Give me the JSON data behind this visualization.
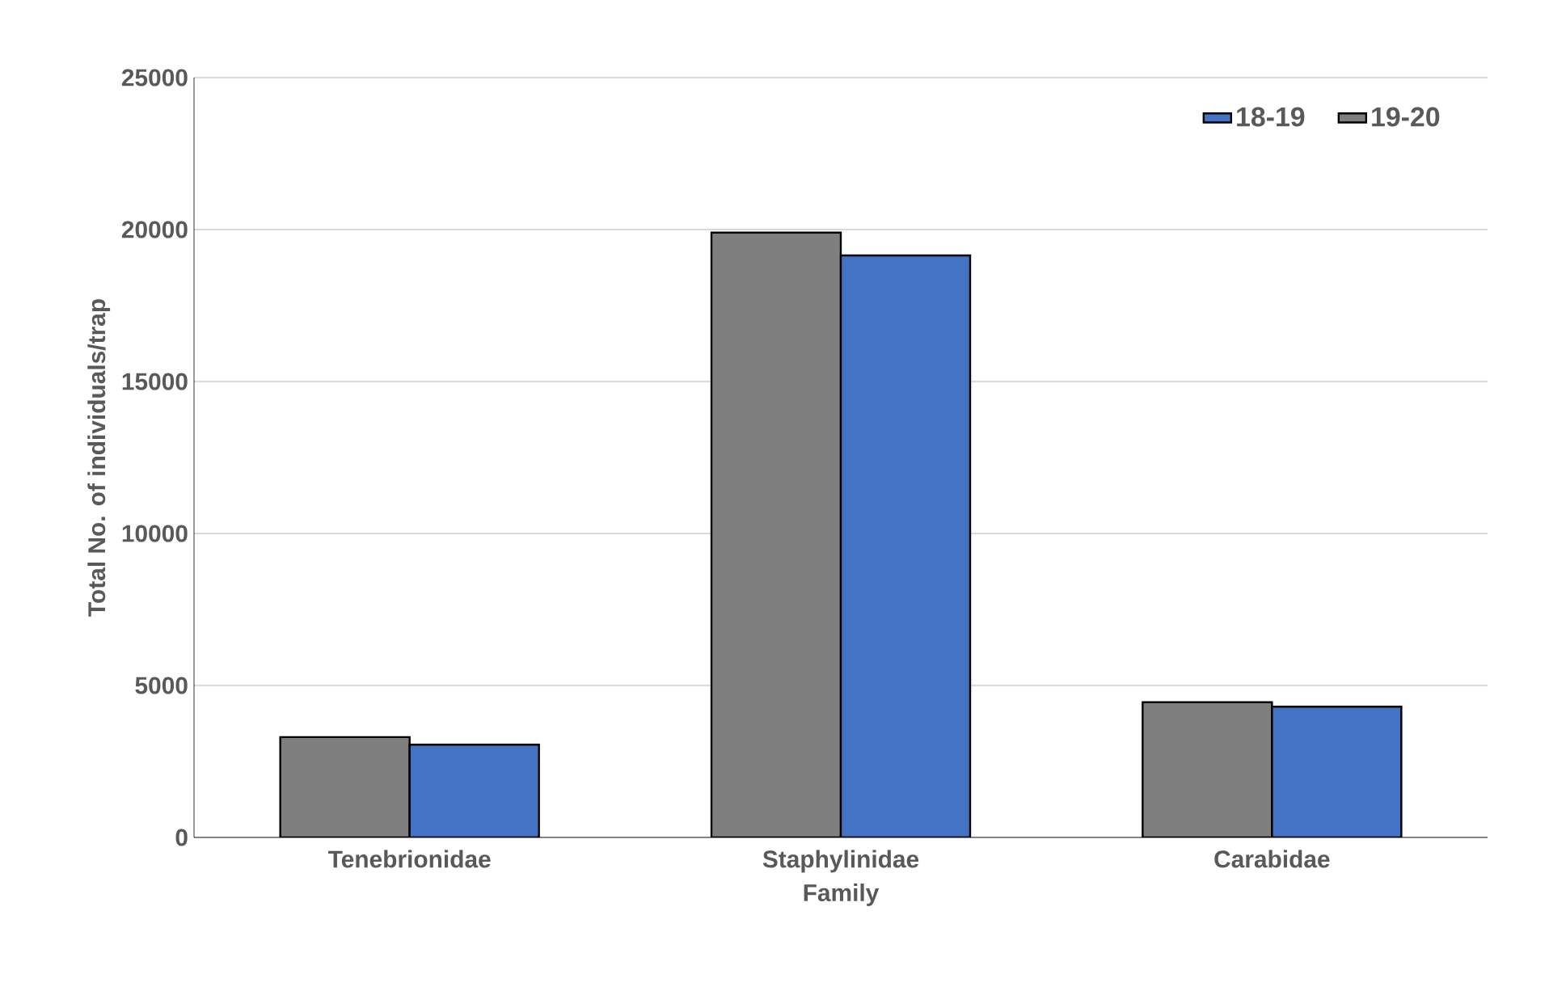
{
  "chart_data": {
    "type": "bar",
    "xlabel": "Family",
    "ylabel": "Total No. of individuals/trap",
    "categories": [
      "Tenebrionidae",
      "Staphylinidae",
      "Carabidae"
    ],
    "series": [
      {
        "name": "19-20",
        "color": "#7f7f7f",
        "values": [
          3300,
          19900,
          4450
        ]
      },
      {
        "name": "18-19",
        "color": "#4472c4",
        "values": [
          3050,
          19150,
          4300
        ]
      }
    ],
    "ylim": [
      0,
      25000
    ],
    "yticks": [
      0,
      5000,
      10000,
      15000,
      20000,
      25000
    ],
    "grid": "y",
    "legend": "top right"
  }
}
